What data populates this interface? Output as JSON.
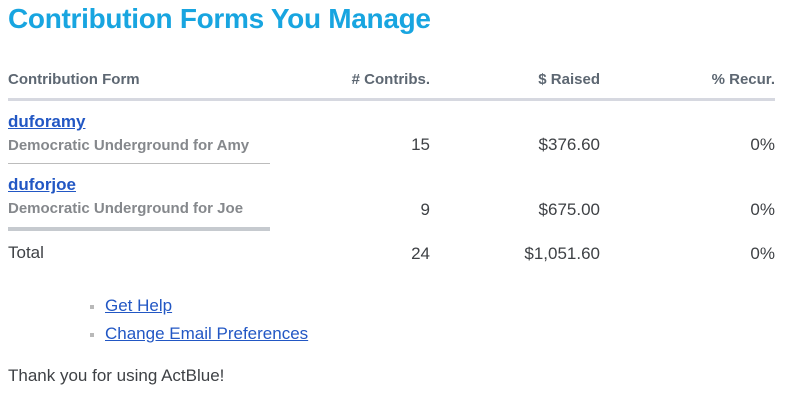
{
  "header": {
    "title": "Contribution Forms You Manage"
  },
  "table": {
    "columns": [
      "Contribution Form",
      "# Contribs.",
      "$ Raised",
      "% Recur."
    ],
    "rows": [
      {
        "slug": "duforamy",
        "name": "Democratic Underground for Amy",
        "contribs": "15",
        "raised": "$376.60",
        "recur": "0%"
      },
      {
        "slug": "duforjoe",
        "name": "Democratic Underground for Joe",
        "contribs": "9",
        "raised": "$675.00",
        "recur": "0%"
      }
    ],
    "total": {
      "label": "Total",
      "contribs": "24",
      "raised": "$1,051.60",
      "recur": "0%"
    }
  },
  "links": [
    {
      "label": "Get Help"
    },
    {
      "label": "Change Email Preferences"
    }
  ],
  "footer": {
    "message": "Thank you for using ActBlue!"
  },
  "colors": {
    "title": "#18a5e0",
    "link": "#2257c4",
    "header_text": "#5d6772",
    "form_name": "#85888c",
    "value_text": "#3e4145"
  }
}
